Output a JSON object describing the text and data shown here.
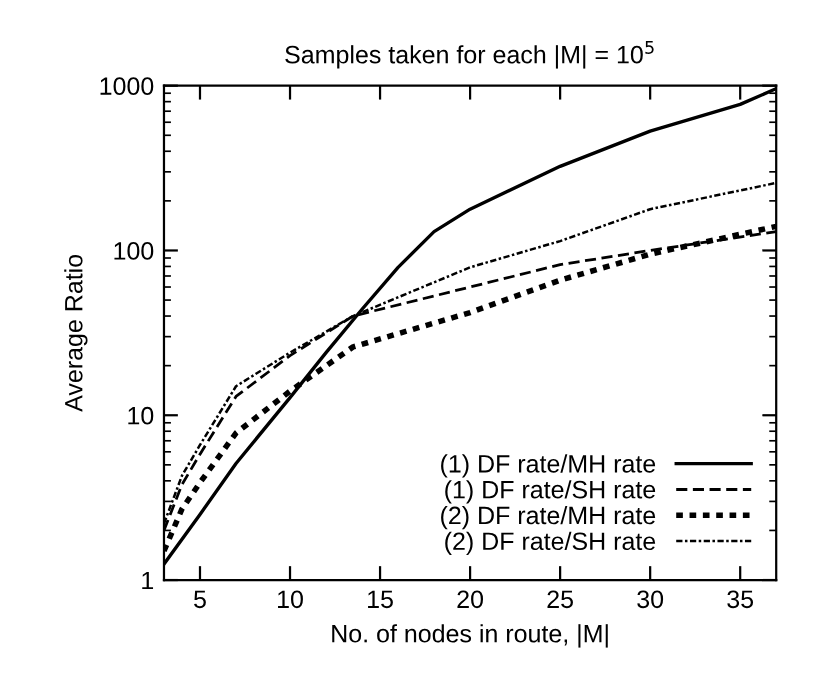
{
  "chart_data": {
    "type": "line",
    "title": "Samples taken for each |M| = 10$^{5}$",
    "xlabel": "No. of nodes in route, |M|",
    "ylabel": "Average Ratio",
    "log": "y",
    "xlim": [
      3,
      37
    ],
    "ylim": [
      1,
      1000
    ],
    "xticks": [
      5,
      10,
      15,
      20,
      25,
      30,
      35
    ],
    "yticks": [
      1,
      10,
      100,
      1000
    ],
    "grid": false,
    "legend": "bottom right",
    "marker": "none",
    "series": [
      {
        "name": "(1) DF rate/MH rate",
        "color": "#000000",
        "line_style": "solid",
        "x": [
          3,
          5,
          7,
          10,
          12,
          14,
          16,
          18,
          20,
          25,
          30,
          35,
          37
        ],
        "values": [
          1.25,
          2.5,
          5.1,
          12.8,
          24,
          44,
          79,
          130,
          178,
          324,
          530,
          770,
          960
        ]
      },
      {
        "name": "(1) DF rate/SH rate",
        "color": "#000000",
        "line_style": "dashed",
        "x": [
          3,
          4,
          5,
          7,
          10,
          13.5,
          20,
          25,
          30,
          37
        ],
        "values": [
          2.0,
          3.8,
          5.8,
          13,
          23,
          40,
          60,
          82,
          100,
          130
        ]
      },
      {
        "name": "(2) DF rate/MH rate",
        "color": "#000000",
        "line_style": "dotted",
        "x": [
          3,
          4,
          5,
          7,
          10,
          13.5,
          20,
          25,
          30,
          37
        ],
        "values": [
          1.5,
          2.7,
          3.9,
          7.8,
          14,
          26,
          42,
          66,
          95,
          140
        ]
      },
      {
        "name": "(2) DF rate/SH rate",
        "color": "#000000",
        "line_style": "dashdot",
        "x": [
          3,
          4,
          5,
          7,
          10,
          13.5,
          20,
          25,
          30,
          37
        ],
        "values": [
          2.2,
          4.3,
          6.6,
          15,
          24,
          40,
          79,
          114,
          178,
          257
        ]
      }
    ]
  }
}
